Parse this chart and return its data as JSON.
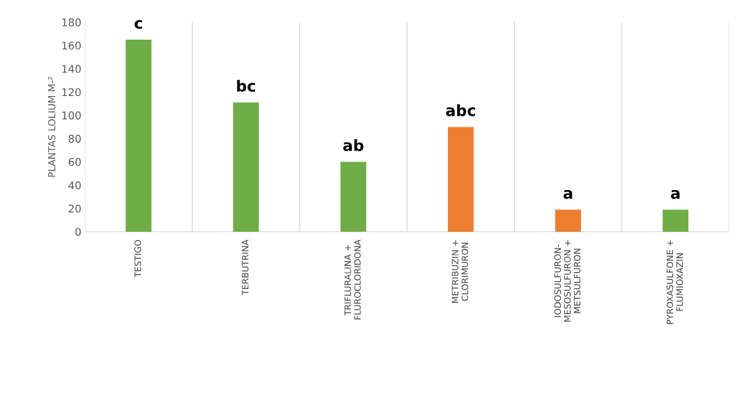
{
  "chart_data": {
    "type": "bar",
    "ylabel": "PLANTAS LOLIUM M-²",
    "categories": [
      "TESTIGO",
      "TERBUTRINA",
      "TRIFLURALINA +\nFLUROCLORIDONA",
      "METRIBUZIN +\nCLORIMURON",
      "IODOSULFURON-\nMESOSULFURON +\nMETSULFURON",
      "PYROXASULFONE +\nFLUMIOXAZIN"
    ],
    "values": [
      165,
      111,
      60,
      90,
      19,
      19
    ],
    "colors": [
      "#70ad47",
      "#70ad47",
      "#70ad47",
      "#ed7d31",
      "#ed7d31",
      "#70ad47"
    ],
    "ylim": [
      0,
      180
    ],
    "yticks": [
      0,
      20,
      40,
      60,
      80,
      100,
      120,
      140,
      160,
      180
    ],
    "grid": "x",
    "annotations": [
      {
        "text": "c",
        "x": "TESTIGO",
        "y": 165
      },
      {
        "text": "bc",
        "x": "TERBUTRINA",
        "y": 111
      },
      {
        "text": "ab",
        "x": "TRIFLURALINA +\nFLUROCLORIDONA",
        "y": 60
      },
      {
        "text": "abc",
        "x": "METRIBUZIN +\nCLORIMURON",
        "y": 90
      },
      {
        "text": "a",
        "x": "IODOSULFURON-\nMESOSULFURON +\nMETSULFURON",
        "y": 19
      },
      {
        "text": "a",
        "x": "PYROXASULFONE +\nFLUMIOXAZIN",
        "y": 19
      }
    ]
  }
}
